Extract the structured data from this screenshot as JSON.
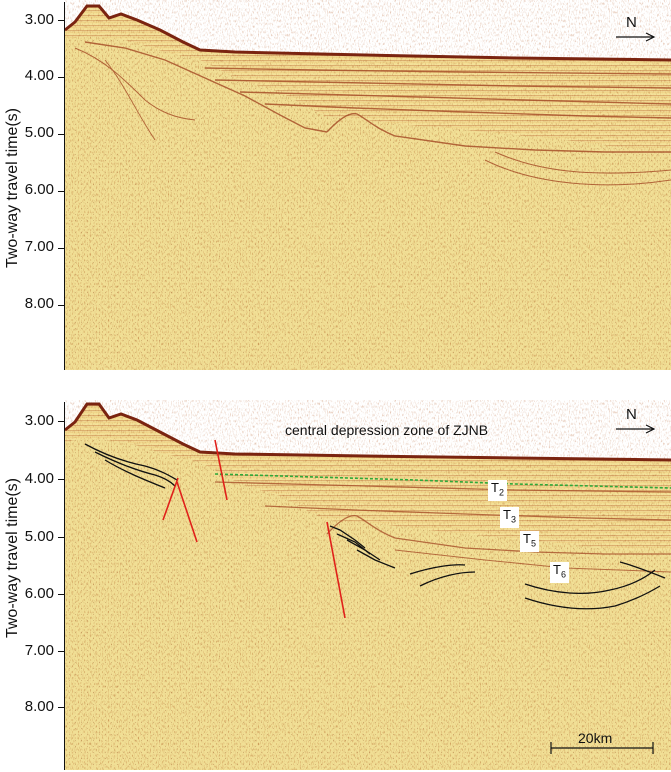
{
  "axis": {
    "ylabel": "Two-way travel time(s)",
    "ticks": [
      "3.00",
      "4.00",
      "5.00",
      "6.00",
      "7.00",
      "8.00"
    ]
  },
  "north_label": "N",
  "bottom": {
    "zone_title": "central depression zone of ZJNB",
    "horizons": [
      {
        "base": "T",
        "sub": "2"
      },
      {
        "base": "T",
        "sub": "3"
      },
      {
        "base": "T",
        "sub": "5"
      },
      {
        "base": "T",
        "sub": "6"
      }
    ],
    "scale_bar": "20km"
  },
  "colors": {
    "seismic_background": "#f2de92",
    "sea_floor": "#8b2a12",
    "reflector": "#a8502a",
    "fault": "#e0201a",
    "horizon_T2": "#2fa83a",
    "interpreted_reflector": "#111111"
  }
}
